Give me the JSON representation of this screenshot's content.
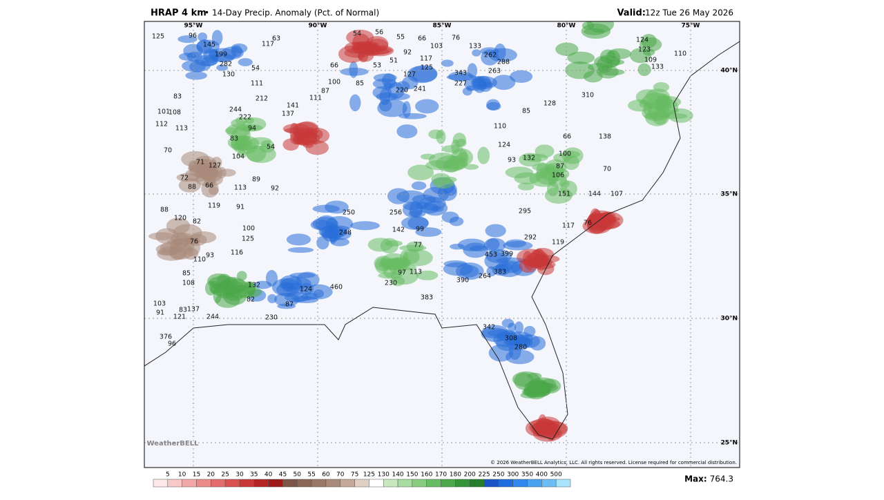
{
  "header": {
    "model": "HRAP 4 km",
    "product": "14-Day Precip. Anomaly (Pct. of Normal)",
    "valid_label": "Valid:",
    "valid_time": "12z Tue 26 May 2026"
  },
  "longitudes": [
    "95°W",
    "90°W",
    "85°W",
    "80°W",
    "75°W"
  ],
  "latitudes": [
    "40°N",
    "35°N",
    "30°N",
    "25°N"
  ],
  "map_values": [
    145,
    199,
    282,
    130,
    111,
    212,
    244,
    222,
    94,
    83,
    54,
    104,
    89,
    92,
    113,
    100,
    125,
    116,
    132,
    82,
    230,
    87,
    124,
    460,
    250,
    248,
    256,
    142,
    99,
    77,
    113,
    97,
    230,
    383,
    390,
    264,
    453,
    399,
    383,
    295,
    292,
    342,
    308,
    280,
    110,
    124,
    93,
    132,
    87,
    106,
    151,
    100,
    66,
    138,
    70,
    144,
    107,
    117,
    76,
    119,
    124,
    123,
    109,
    110,
    133,
    128,
    85,
    310,
    262,
    288,
    263,
    343,
    227,
    241,
    220,
    127,
    125,
    117,
    103,
    76,
    133,
    66,
    55,
    54,
    56,
    92,
    51,
    53,
    66,
    100,
    85,
    87,
    111,
    141,
    137,
    63,
    117,
    54,
    96,
    125,
    83,
    108,
    101,
    112,
    113,
    70,
    71,
    127,
    72,
    88,
    66,
    119,
    91,
    88,
    120,
    82,
    76,
    110,
    93,
    85,
    108,
    103,
    91,
    83,
    137,
    121,
    244,
    376,
    96
  ],
  "copyright": "© 2026 WeatherBELL Analytics, LLC. All rights reserved. License required for commercial distribution.",
  "logo": "WeatherBELL",
  "colorbar": {
    "labels": [
      5,
      10,
      15,
      20,
      25,
      30,
      35,
      40,
      45,
      50,
      55,
      60,
      70,
      75,
      125,
      130,
      140,
      150,
      160,
      170,
      180,
      200,
      225,
      250,
      300,
      350,
      400,
      500
    ],
    "colors": [
      "#fde8e8",
      "#f9c8c8",
      "#f3a8a8",
      "#ec8a8a",
      "#e36c6c",
      "#d85050",
      "#c93838",
      "#b52424",
      "#9e1a1a",
      "#7a5548",
      "#8a6656",
      "#9a7868",
      "#aa8a7a",
      "#c4a898",
      "#e0d0c4",
      "#ffffff",
      "#c8e8c0",
      "#a8dca0",
      "#88cc80",
      "#68bc62",
      "#4aa848",
      "#359438",
      "#257e2c",
      "#1a55c8",
      "#1f6ee0",
      "#3088ec",
      "#4aa2f2",
      "#6cbcf6",
      "#a8e4fa"
    ]
  },
  "max_label": "Max:",
  "max_value": "764.3"
}
